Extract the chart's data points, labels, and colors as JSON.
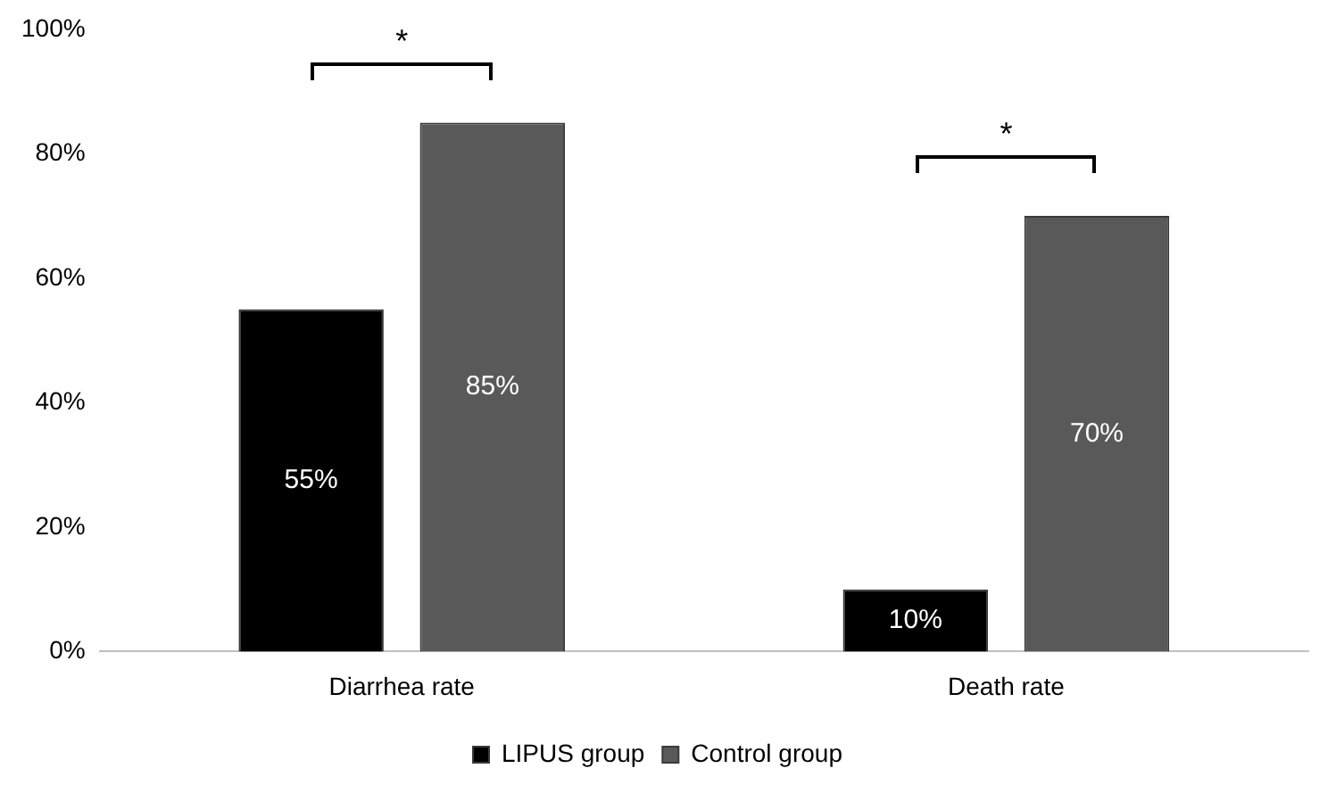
{
  "chart_data": {
    "type": "bar",
    "categories": [
      "Diarrhea rate",
      "Death rate"
    ],
    "series": [
      {
        "name": "LIPUS group",
        "color": "#000000",
        "values": [
          55,
          10
        ],
        "value_labels": [
          "55%",
          "10%"
        ]
      },
      {
        "name": "Control group",
        "color": "#595959",
        "values": [
          85,
          70
        ],
        "value_labels": [
          "85%",
          "70%"
        ]
      }
    ],
    "ylim": [
      0,
      100
    ],
    "yticks": [
      {
        "value": 0,
        "label": "0%"
      },
      {
        "value": 20,
        "label": "20%"
      },
      {
        "value": 40,
        "label": "40%"
      },
      {
        "value": 60,
        "label": "60%"
      },
      {
        "value": 80,
        "label": "80%"
      },
      {
        "value": 100,
        "label": "100%"
      }
    ],
    "grid": false,
    "legend": "bottom",
    "annotations": [
      "*",
      "*"
    ]
  }
}
